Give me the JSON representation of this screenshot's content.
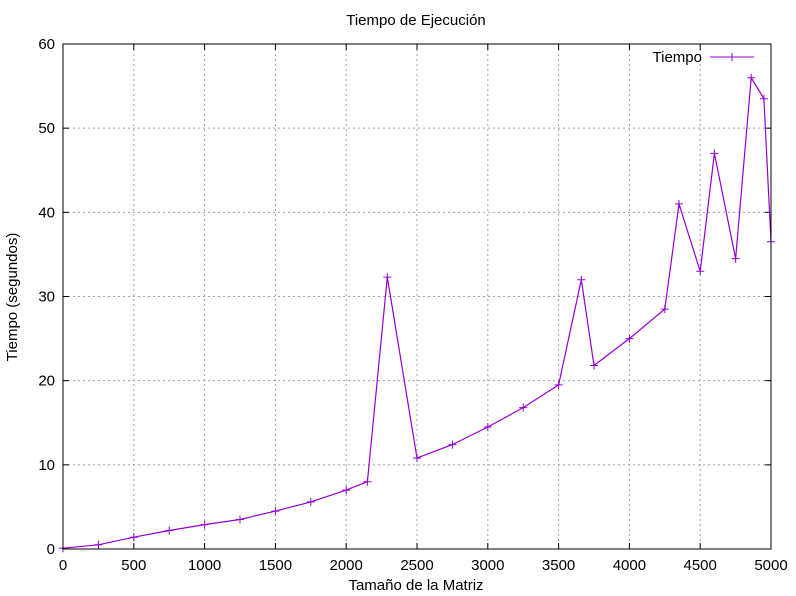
{
  "chart_data": {
    "type": "line",
    "title": "Tiempo de Ejecución",
    "xlabel": "Tamaño de la Matriz",
    "ylabel": "Tiempo (segundos)",
    "xlim": [
      0,
      5000
    ],
    "ylim": [
      0,
      60
    ],
    "xticks": [
      "0",
      "500",
      "1000",
      "1500",
      "2000",
      "2500",
      "3000",
      "3500",
      "4000",
      "4500",
      "5000"
    ],
    "yticks": [
      "0",
      "10",
      "20",
      "30",
      "40",
      "50",
      "60"
    ],
    "grid": true,
    "legend_position": "top-right",
    "series_color": "#9400d3",
    "marker": "plus",
    "series": [
      {
        "name": "Tiempo",
        "x": [
          0,
          250,
          500,
          750,
          1000,
          1250,
          1500,
          1750,
          2000,
          2150,
          2290,
          2500,
          2750,
          3000,
          3250,
          3500,
          3660,
          3750,
          4000,
          4250,
          4350,
          4500,
          4600,
          4750,
          4860,
          4950,
          5000
        ],
        "y": [
          0.1,
          0.5,
          1.4,
          2.2,
          2.9,
          3.5,
          4.5,
          5.6,
          7.0,
          8.0,
          32.3,
          10.8,
          12.4,
          14.5,
          16.8,
          19.5,
          32.0,
          21.8,
          25.0,
          28.5,
          41.0,
          33.0,
          47.0,
          34.5,
          56.0,
          53.5,
          36.5
        ]
      }
    ]
  }
}
